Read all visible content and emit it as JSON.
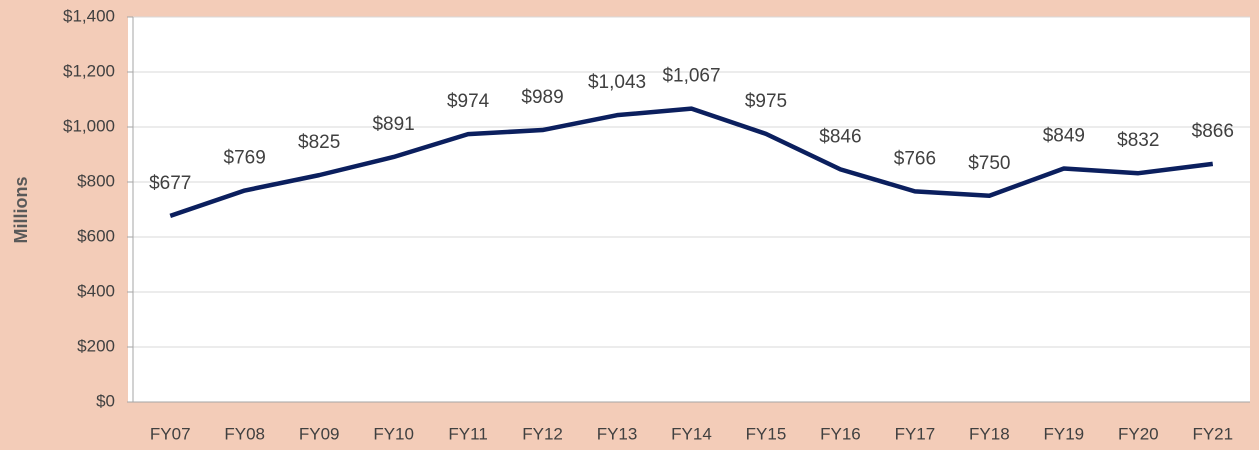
{
  "chart_data": {
    "type": "line",
    "y_axis_label": "Millions",
    "categories": [
      "FY07",
      "FY08",
      "FY09",
      "FY10",
      "FY11",
      "FY12",
      "FY13",
      "FY14",
      "FY15",
      "FY16",
      "FY17",
      "FY18",
      "FY19",
      "FY20",
      "FY21"
    ],
    "series": [
      {
        "name": "Millions",
        "color": "#0b1f5e",
        "values": [
          677,
          769,
          825,
          891,
          974,
          989,
          1043,
          1067,
          975,
          846,
          766,
          750,
          849,
          832,
          866
        ],
        "value_labels": [
          "$677",
          "$769",
          "$825",
          "$891",
          "$974",
          "$989",
          "$1,043",
          "$1,067",
          "$975",
          "$846",
          "$766",
          "$750",
          "$849",
          "$832",
          "$866"
        ]
      }
    ],
    "ylim": [
      0,
      1400
    ],
    "yticks": [
      {
        "value": 0,
        "label": "$0"
      },
      {
        "value": 200,
        "label": "$200"
      },
      {
        "value": 400,
        "label": "$400"
      },
      {
        "value": 600,
        "label": "$600"
      },
      {
        "value": 800,
        "label": "$800"
      },
      {
        "value": 1000,
        "label": "$1,000"
      },
      {
        "value": 1200,
        "label": "$1,200"
      },
      {
        "value": 1400,
        "label": "$1,400"
      }
    ],
    "grid": true
  }
}
